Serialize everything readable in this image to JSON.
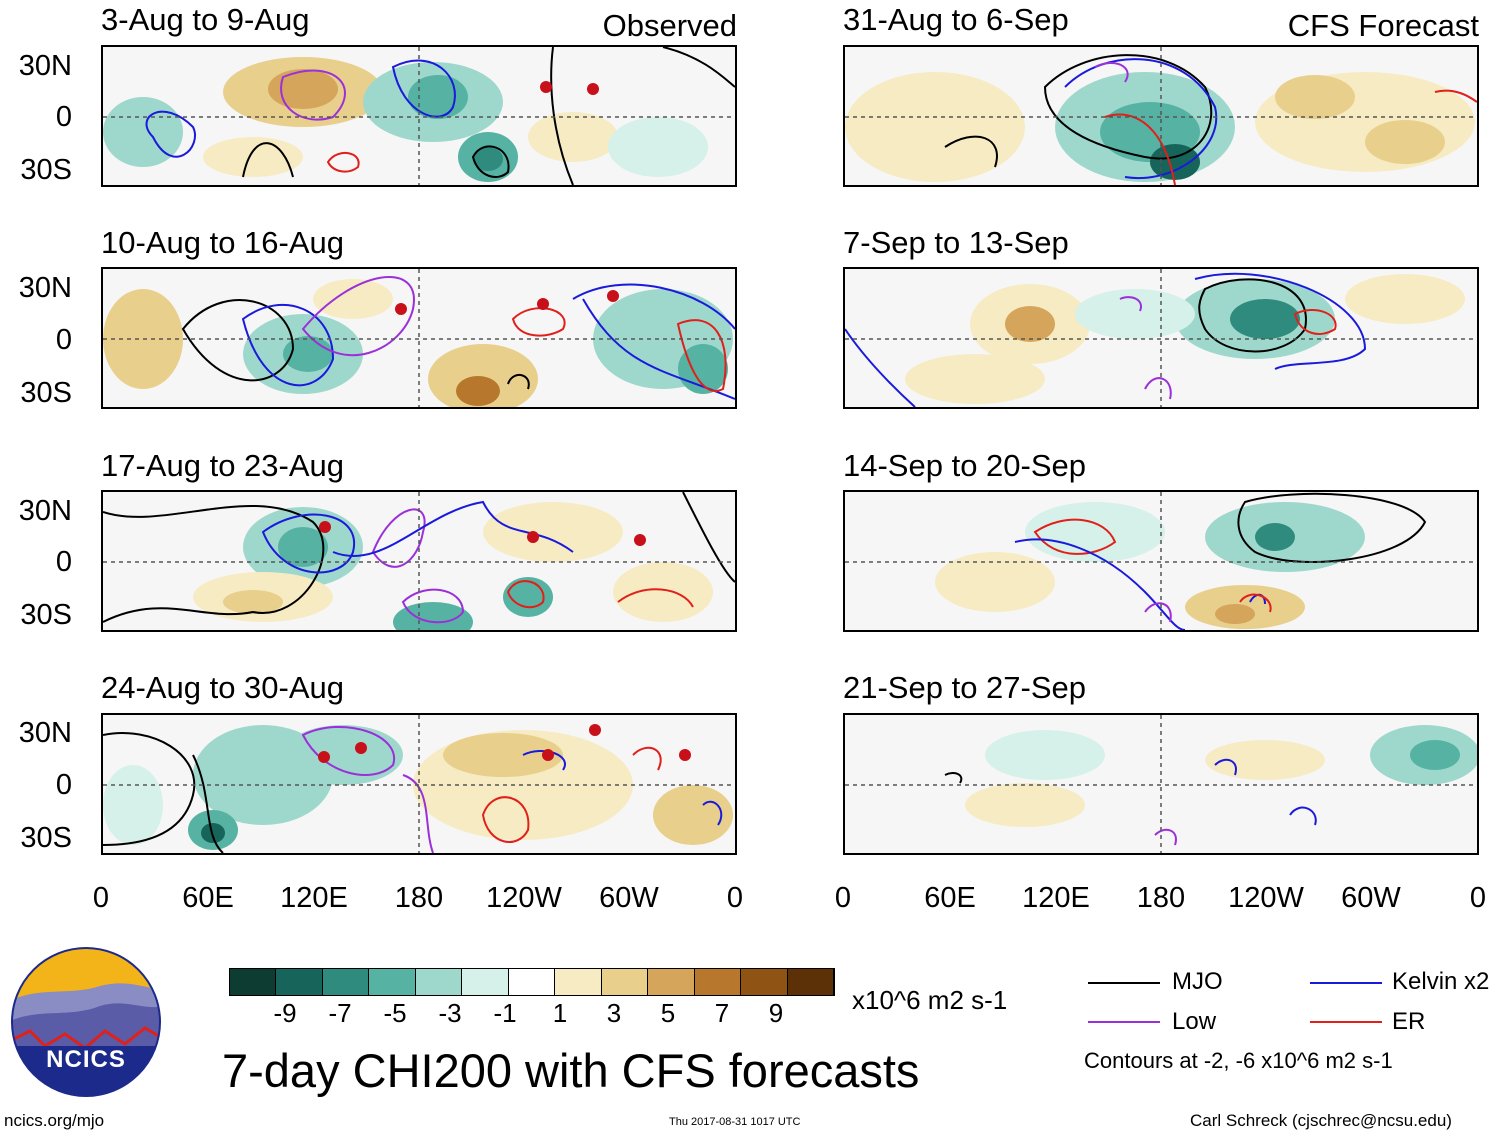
{
  "columns": {
    "observed_label": "Observed",
    "forecast_label": "CFS Forecast"
  },
  "panels_left": [
    {
      "title": "3-Aug to 9-Aug"
    },
    {
      "title": "10-Aug to 16-Aug"
    },
    {
      "title": "17-Aug to 23-Aug"
    },
    {
      "title": "24-Aug to 30-Aug"
    }
  ],
  "panels_right": [
    {
      "title": "31-Aug to 6-Sep"
    },
    {
      "title": "7-Sep to 13-Sep"
    },
    {
      "title": "14-Sep to 20-Sep"
    },
    {
      "title": "21-Sep to 27-Sep"
    }
  ],
  "lat_labels": [
    "30N",
    "0",
    "30S"
  ],
  "lon_labels": [
    "0",
    "60E",
    "120E",
    "180",
    "120W",
    "60W",
    "0"
  ],
  "colorbar": {
    "colors": [
      "#0c3c32",
      "#17645a",
      "#2e8b7e",
      "#56b3a3",
      "#9ed8cc",
      "#d6f0ea",
      "#ffffff",
      "#f7ebc4",
      "#e9cf8c",
      "#d4a55a",
      "#b7782e",
      "#8f5314",
      "#5c3108"
    ],
    "labels": [
      "-9",
      "-7",
      "-5",
      "-3",
      "-1",
      "1",
      "3",
      "5",
      "7",
      "9"
    ],
    "units": "x10^6 m2 s-1"
  },
  "legend": {
    "items": [
      {
        "label": "MJO",
        "color": "#000000"
      },
      {
        "label": "Kelvin x2",
        "color": "#1a1adc"
      },
      {
        "label": "Low",
        "color": "#9b30d9"
      },
      {
        "label": "ER",
        "color": "#e0201a"
      }
    ],
    "contours_note": "Contours at -2, -6 x10^6 m2 s-1"
  },
  "main_title": "7-day CHI200 with CFS forecasts",
  "logo_text": "NCICS",
  "footer": {
    "website": "ncics.org/mjo",
    "timestamp": "Thu 2017-08-31 1017 UTC",
    "author": "Carl Schreck (cjschrec@ncsu.edu)"
  }
}
